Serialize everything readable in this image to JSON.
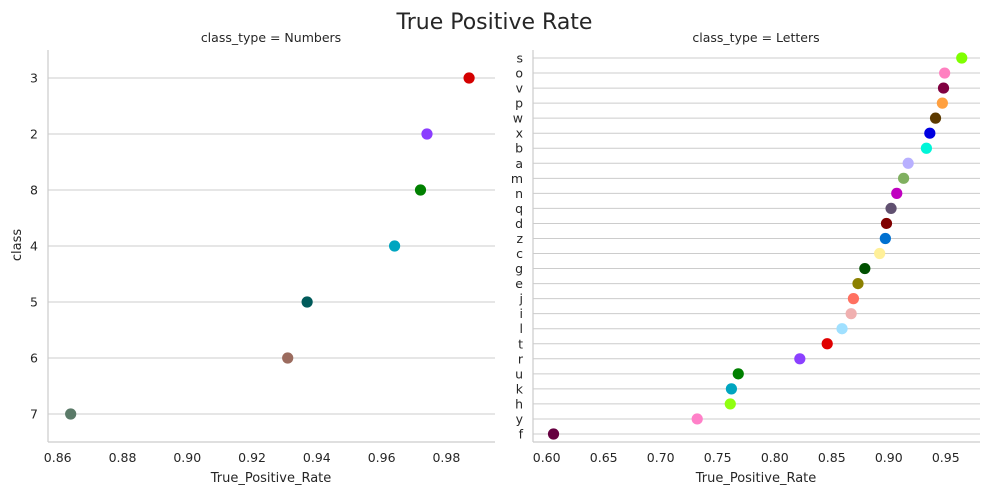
{
  "title": "True Positive Rate",
  "chart_data": [
    {
      "type": "scatter",
      "facet_title": "class_type = Numbers",
      "xlabel": "True_Positive_Rate",
      "ylabel": "class",
      "xlim": [
        0.857,
        0.995
      ],
      "xticks": [
        "0.86",
        "0.88",
        "0.90",
        "0.92",
        "0.94",
        "0.96",
        "0.98"
      ],
      "grid": "horizontal",
      "categories": [
        "3",
        "2",
        "8",
        "4",
        "5",
        "6",
        "7"
      ],
      "values": [
        0.987,
        0.974,
        0.972,
        0.964,
        0.937,
        0.931,
        0.864
      ],
      "colors": [
        "#d40000",
        "#8b3dff",
        "#008000",
        "#00a5c0",
        "#005a5a",
        "#9b6b5e",
        "#5a7a68"
      ]
    },
    {
      "type": "scatter",
      "facet_title": "class_type = Letters",
      "xlabel": "True_Positive_Rate",
      "ylabel": "",
      "xlim": [
        0.588,
        0.98
      ],
      "xticks": [
        "0.60",
        "0.65",
        "0.70",
        "0.75",
        "0.80",
        "0.85",
        "0.90",
        "0.95"
      ],
      "grid": "horizontal",
      "categories": [
        "s",
        "o",
        "v",
        "p",
        "w",
        "x",
        "b",
        "a",
        "m",
        "n",
        "q",
        "d",
        "z",
        "c",
        "g",
        "e",
        "j",
        "i",
        "l",
        "t",
        "r",
        "u",
        "k",
        "h",
        "y",
        "f"
      ],
      "values": [
        0.964,
        0.949,
        0.948,
        0.947,
        0.941,
        0.936,
        0.933,
        0.917,
        0.913,
        0.907,
        0.902,
        0.898,
        0.897,
        0.892,
        0.879,
        0.873,
        0.869,
        0.867,
        0.859,
        0.846,
        0.822,
        0.768,
        0.762,
        0.761,
        0.732,
        0.606
      ],
      "colors": [
        "#7fff00",
        "#ff80c0",
        "#800040",
        "#ffa040",
        "#5c3a00",
        "#0000e0",
        "#00f5d8",
        "#b8b0ff",
        "#80b060",
        "#c000c0",
        "#605070",
        "#800000",
        "#0070d0",
        "#fff099",
        "#005000",
        "#8b8000",
        "#ff7060",
        "#f0b0b0",
        "#a0e0ff",
        "#e00000",
        "#8b40ff",
        "#008000",
        "#00a5c0",
        "#90ff10",
        "#ff80c8",
        "#660040"
      ]
    }
  ]
}
